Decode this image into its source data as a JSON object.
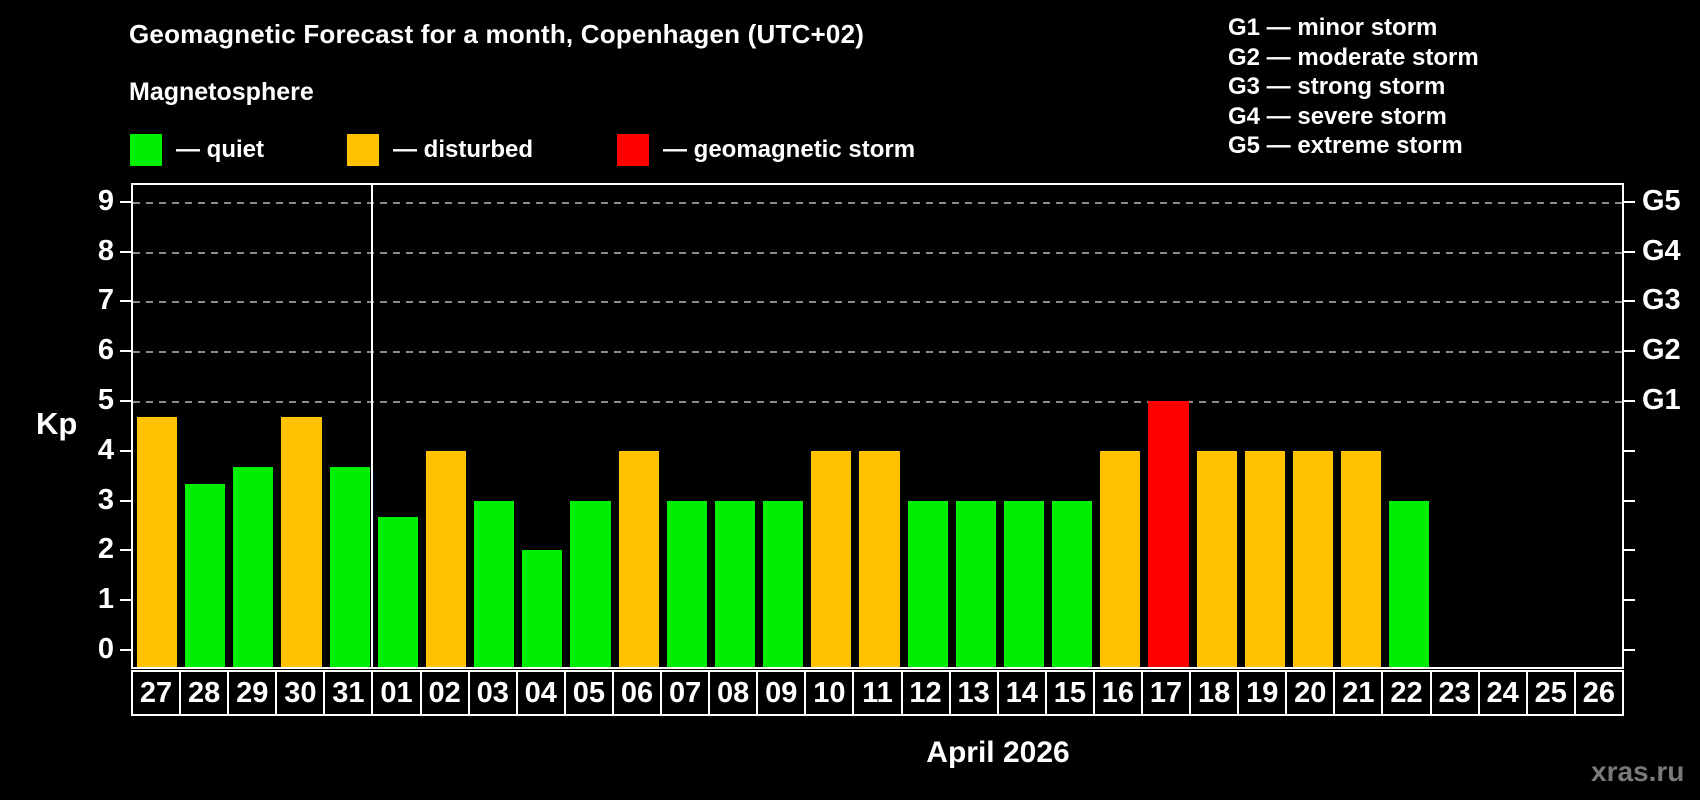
{
  "title": "Geomagnetic Forecast for a month, Copenhagen (UTC+02)",
  "subtitle": "Magnetosphere",
  "watermark": "xras.ru",
  "colors": {
    "quiet": "#00ee00",
    "disturbed": "#ffc100",
    "storm": "#ff0000",
    "grid": "#8a8a8a",
    "axis": "#ffffff",
    "watermark": "#7a7a7a"
  },
  "legend": {
    "items": [
      {
        "label": "— quiet",
        "state": "quiet"
      },
      {
        "label": "— disturbed",
        "state": "disturbed"
      },
      {
        "label": "— geomagnetic storm",
        "state": "storm"
      }
    ]
  },
  "g_scale_legend": {
    "items": [
      "G1 — minor storm",
      "G2 — moderate storm",
      "G3 — strong storm",
      "G4 — severe storm",
      "G5 — extreme storm"
    ]
  },
  "chart_data": {
    "type": "bar",
    "title": "Geomagnetic Forecast for a month, Copenhagen (UTC+02)",
    "subtitle": "Magnetosphere",
    "ylabel": "Kp",
    "month_label": "April 2026",
    "ylim": [
      0,
      9.5
    ],
    "y_ticks": [
      0,
      1,
      2,
      3,
      4,
      5,
      6,
      7,
      8,
      9
    ],
    "gridlines_at": [
      5,
      6,
      7,
      8,
      9
    ],
    "grid": "dashed, horizontal, only at G-storm levels",
    "legend_position": "top-left",
    "right_axis": [
      {
        "label": "G1",
        "kp": 5
      },
      {
        "label": "G2",
        "kp": 6
      },
      {
        "label": "G3",
        "kp": 7
      },
      {
        "label": "G4",
        "kp": 8
      },
      {
        "label": "G5",
        "kp": 9
      }
    ],
    "categories": [
      "27",
      "28",
      "29",
      "30",
      "31",
      "01",
      "02",
      "03",
      "04",
      "05",
      "06",
      "07",
      "08",
      "09",
      "10",
      "11",
      "12",
      "13",
      "14",
      "15",
      "16",
      "17",
      "18",
      "19",
      "20",
      "21",
      "22",
      "23",
      "24",
      "25",
      "26"
    ],
    "values": [
      4.67,
      3.33,
      3.67,
      4.67,
      3.67,
      2.67,
      4,
      3,
      2,
      3,
      4,
      3,
      3,
      3,
      4,
      4,
      3,
      3,
      3,
      3,
      4,
      5,
      4,
      4,
      4,
      4,
      3,
      null,
      null,
      null,
      null
    ],
    "states": [
      "disturbed",
      "quiet",
      "quiet",
      "disturbed",
      "quiet",
      "quiet",
      "disturbed",
      "quiet",
      "quiet",
      "quiet",
      "disturbed",
      "quiet",
      "quiet",
      "quiet",
      "disturbed",
      "disturbed",
      "quiet",
      "quiet",
      "quiet",
      "quiet",
      "disturbed",
      "storm",
      "disturbed",
      "disturbed",
      "disturbed",
      "disturbed",
      "quiet",
      null,
      null,
      null,
      null
    ],
    "month_separator_after": "31"
  }
}
